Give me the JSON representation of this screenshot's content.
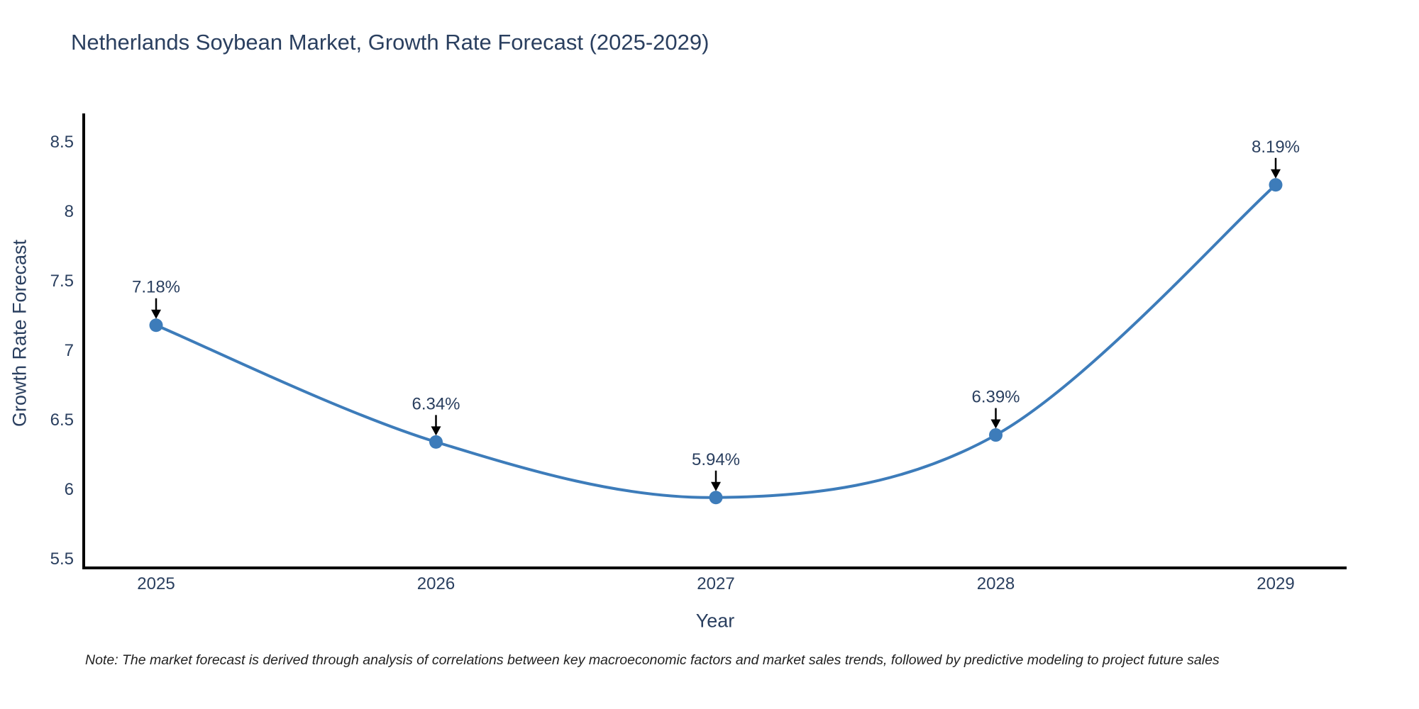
{
  "chart_data": {
    "type": "line",
    "title": "Netherlands Soybean Market, Growth Rate Forecast (2025-2029)",
    "xlabel": "Year",
    "ylabel": "Growth Rate Forecast",
    "categories": [
      "2025",
      "2026",
      "2027",
      "2028",
      "2029"
    ],
    "values": [
      7.18,
      6.34,
      5.94,
      6.39,
      8.19
    ],
    "point_labels": [
      "7.18%",
      "6.34%",
      "5.94%",
      "6.39%",
      "8.19%"
    ],
    "yticks": [
      "5.5",
      "6",
      "6.5",
      "7",
      "7.5",
      "8",
      "8.5"
    ],
    "ylim": [
      5.4,
      8.7
    ],
    "grid": false,
    "line_shape": "spline",
    "legend": "none",
    "colors": {
      "line": "#3d7cba",
      "marker": "#3d7cba",
      "axis": "#000000",
      "arrow": "#000000",
      "text": "#2a3f5f"
    }
  },
  "note": {
    "text": "Note: The market forecast is derived through analysis of correlations between key macroeconomic factors and market sales trends, followed by predictive modeling to project future sales"
  }
}
